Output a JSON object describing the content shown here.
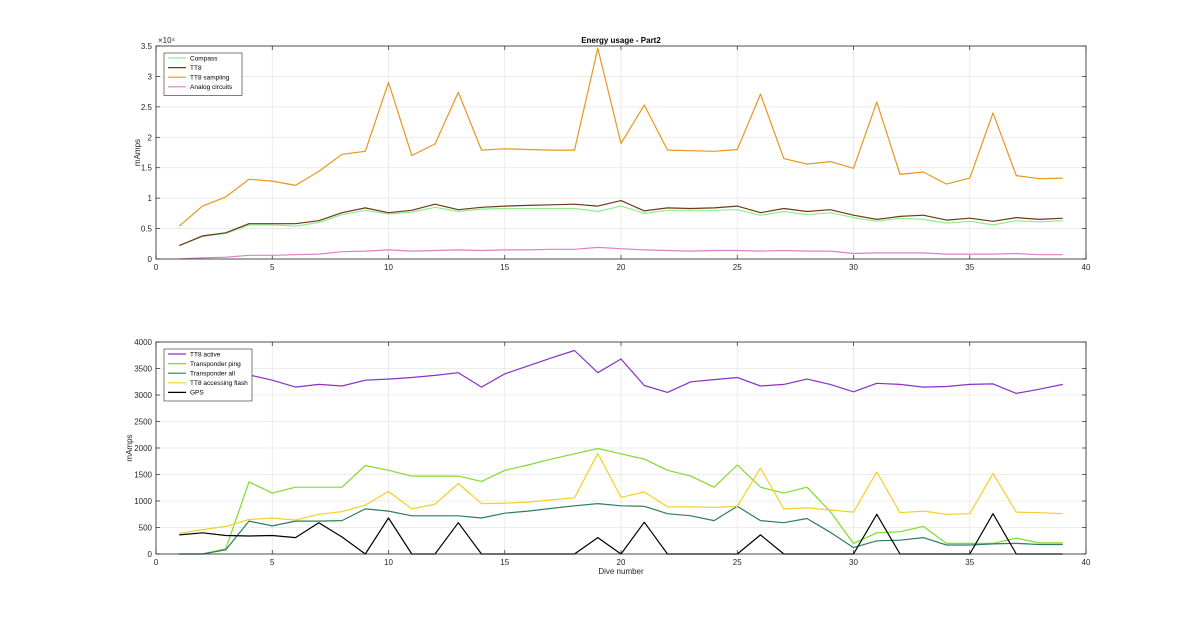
{
  "chart_data": [
    {
      "type": "line",
      "title": "Energy usage - Part2",
      "xlabel": "",
      "ylabel": "mAmps",
      "exponent_label": "×10⁴",
      "xlim": [
        0,
        40
      ],
      "ylim": [
        0,
        35000
      ],
      "xticks": [
        0,
        5,
        10,
        15,
        20,
        25,
        30,
        35,
        40
      ],
      "yticks": [
        0,
        5000,
        10000,
        15000,
        20000,
        25000,
        30000,
        35000
      ],
      "ytick_labels": [
        "0",
        "0.5",
        "1",
        "1.5",
        "2",
        "2.5",
        "3",
        "3.5"
      ],
      "grid": true,
      "legend_position": "top-left",
      "x": [
        1,
        2,
        3,
        4,
        5,
        6,
        7,
        8,
        9,
        10,
        11,
        12,
        13,
        14,
        15,
        16,
        17,
        18,
        19,
        20,
        21,
        22,
        23,
        24,
        25,
        26,
        27,
        28,
        29,
        30,
        31,
        32,
        33,
        34,
        35,
        36,
        37,
        38,
        39
      ],
      "series": [
        {
          "name": "Compass",
          "color": "#90ee90",
          "values": [
            2200,
            3700,
            4200,
            5600,
            5600,
            5400,
            6000,
            7300,
            8000,
            7400,
            7700,
            8500,
            7800,
            8200,
            8300,
            8300,
            8300,
            8300,
            7800,
            8700,
            7500,
            8000,
            8000,
            8000,
            8100,
            7200,
            7800,
            7300,
            7600,
            6800,
            6200,
            6700,
            6500,
            5900,
            6200,
            5600,
            6300,
            6100,
            6300
          ]
        },
        {
          "name": "TT8",
          "color": "#6b3a16",
          "values": [
            2200,
            3800,
            4300,
            5800,
            5800,
            5800,
            6300,
            7600,
            8400,
            7600,
            8000,
            9000,
            8100,
            8500,
            8700,
            8800,
            8900,
            9000,
            8700,
            9600,
            7900,
            8400,
            8300,
            8400,
            8700,
            7600,
            8300,
            7800,
            8100,
            7200,
            6500,
            7000,
            7200,
            6400,
            6700,
            6200,
            6800,
            6500,
            6700
          ]
        },
        {
          "name": "TT8 sampling",
          "color": "#e8961e",
          "values": [
            5400,
            8700,
            10200,
            13100,
            12800,
            12100,
            14400,
            17200,
            17700,
            29000,
            17000,
            18900,
            27400,
            17900,
            18100,
            18000,
            17900,
            17900,
            34600,
            19000,
            25300,
            17900,
            17800,
            17700,
            18000,
            27100,
            16500,
            15600,
            16000,
            14900,
            25800,
            13900,
            14300,
            12300,
            13300,
            24000,
            13700,
            13200,
            13300
          ]
        },
        {
          "name": "Analog circuits",
          "color": "#e07ec8",
          "values": [
            0,
            200,
            300,
            600,
            600,
            700,
            800,
            1200,
            1300,
            1500,
            1300,
            1400,
            1500,
            1400,
            1500,
            1500,
            1600,
            1600,
            1900,
            1700,
            1500,
            1400,
            1300,
            1400,
            1400,
            1300,
            1400,
            1300,
            1300,
            900,
            1000,
            1000,
            1000,
            800,
            800,
            800,
            900,
            700,
            700
          ]
        }
      ]
    },
    {
      "type": "line",
      "title": "",
      "xlabel": "Dive number",
      "ylabel": "mAmps",
      "xlim": [
        0,
        40
      ],
      "ylim": [
        0,
        4000
      ],
      "xticks": [
        0,
        5,
        10,
        15,
        20,
        25,
        30,
        35,
        40
      ],
      "yticks": [
        0,
        500,
        1000,
        1500,
        2000,
        2500,
        3000,
        3500,
        4000
      ],
      "ytick_labels": [
        "0",
        "500",
        "1000",
        "1500",
        "2000",
        "2500",
        "3000",
        "3500",
        "4000"
      ],
      "grid": true,
      "legend_position": "top-left",
      "x": [
        1,
        2,
        3,
        4,
        5,
        6,
        7,
        8,
        9,
        10,
        11,
        12,
        13,
        14,
        15,
        16,
        17,
        18,
        19,
        20,
        21,
        22,
        23,
        24,
        25,
        26,
        27,
        28,
        29,
        30,
        31,
        32,
        33,
        34,
        35,
        36,
        37,
        38,
        39
      ],
      "series": [
        {
          "name": "TT8 active",
          "color": "#8b2fc9",
          "values": [
            2900,
            3000,
            3100,
            3380,
            3280,
            3150,
            3200,
            3170,
            3280,
            3300,
            3330,
            3370,
            3420,
            3150,
            3400,
            3550,
            3700,
            3840,
            3420,
            3680,
            3180,
            3050,
            3250,
            3290,
            3330,
            3170,
            3200,
            3300,
            3200,
            3060,
            3220,
            3200,
            3150,
            3160,
            3200,
            3210,
            3030,
            3110,
            3200
          ]
        },
        {
          "name": "Transponder ping",
          "color": "#7fdc2c",
          "values": [
            0,
            0,
            100,
            1360,
            1150,
            1260,
            1260,
            1260,
            1670,
            1580,
            1470,
            1470,
            1470,
            1370,
            1580,
            1680,
            1790,
            1890,
            1990,
            1890,
            1790,
            1580,
            1470,
            1260,
            1680,
            1260,
            1150,
            1260,
            800,
            200,
            400,
            420,
            520,
            200,
            200,
            200,
            300,
            210,
            210
          ]
        },
        {
          "name": "Transponder all",
          "color": "#2e7d5e",
          "values": [
            0,
            0,
            80,
            620,
            530,
            620,
            620,
            630,
            850,
            810,
            720,
            720,
            720,
            680,
            770,
            810,
            860,
            910,
            950,
            910,
            900,
            760,
            720,
            630,
            900,
            630,
            590,
            670,
            410,
            120,
            250,
            260,
            310,
            170,
            170,
            190,
            200,
            180,
            180
          ]
        },
        {
          "name": "TT8 accessing flash",
          "color": "#f5cf2a",
          "values": [
            390,
            460,
            520,
            650,
            680,
            640,
            750,
            800,
            920,
            1180,
            850,
            940,
            1330,
            950,
            960,
            980,
            1020,
            1060,
            1900,
            1070,
            1170,
            890,
            890,
            880,
            900,
            1620,
            850,
            870,
            830,
            790,
            1550,
            780,
            810,
            750,
            760,
            1520,
            790,
            780,
            760
          ]
        },
        {
          "name": "GPS",
          "color": "#000000",
          "values": [
            360,
            400,
            350,
            340,
            350,
            310,
            590,
            320,
            0,
            680,
            0,
            0,
            590,
            0,
            0,
            0,
            0,
            0,
            310,
            0,
            600,
            0,
            0,
            0,
            0,
            360,
            0,
            0,
            0,
            0,
            750,
            0,
            0,
            0,
            0,
            760,
            0,
            0,
            0
          ]
        }
      ]
    }
  ]
}
